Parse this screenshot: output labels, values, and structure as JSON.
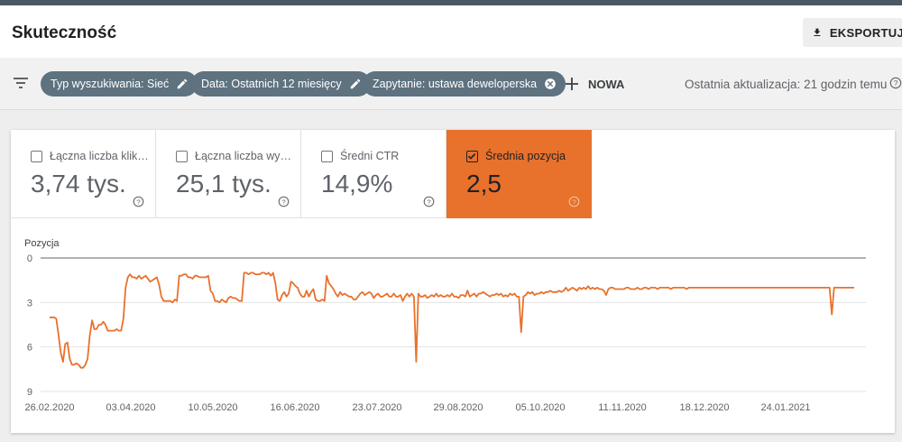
{
  "header": {
    "title": "Skuteczność",
    "export_label": "EKSPORTUJ"
  },
  "filters": {
    "chips": [
      {
        "label": "Typ wyszukiwania: Sieć",
        "icon": "edit-icon"
      },
      {
        "label": "Data: Ostatnich 12 miesięcy",
        "icon": "edit-icon"
      },
      {
        "label": "Zapytanie: ustawa deweloperska",
        "icon": "close-circle-icon"
      }
    ],
    "new_label": "NOWA",
    "last_update": "Ostatnia aktualizacja: 21 godzin temu"
  },
  "metrics": [
    {
      "label": "Łączna liczba klik…",
      "value": "3,74 tys.",
      "checked": false
    },
    {
      "label": "Łączna liczba wy…",
      "value": "25,1 tys.",
      "checked": false
    },
    {
      "label": "Średni CTR",
      "value": "14,9%",
      "checked": false
    },
    {
      "label": "Średnia pozycja",
      "value": "2,5",
      "checked": true
    }
  ],
  "colors": {
    "accent_orange": "#e8712c",
    "chip_bg": "#5e7280",
    "line": "#e8712c"
  },
  "chart_data": {
    "type": "line",
    "ylabel": "Pozycja",
    "y_reversed": true,
    "ylim": [
      0,
      9
    ],
    "yticks": [
      "0",
      "3",
      "6",
      "9"
    ],
    "xtick_labels": [
      "26.02.2020",
      "03.04.2020",
      "10.05.2020",
      "16.06.2020",
      "23.07.2020",
      "29.08.2020",
      "05.10.2020",
      "11.11.2020",
      "18.12.2020",
      "24.01.2021"
    ],
    "grid": true,
    "series": [
      {
        "color": "#e8712c",
        "x_start": "2020-02-26",
        "x_step_days": 1,
        "values": [
          4.0,
          4.0,
          4.0,
          4.1,
          5.2,
          6.4,
          7.0,
          5.8,
          5.7,
          6.8,
          7.2,
          7.2,
          7.1,
          7.2,
          7.4,
          7.4,
          7.2,
          6.8,
          5.2,
          4.2,
          4.8,
          4.8,
          4.5,
          4.5,
          4.3,
          4.5,
          4.9,
          4.9,
          4.9,
          4.9,
          4.8,
          4.9,
          4.9,
          4.1,
          2.0,
          1.3,
          1.1,
          1.3,
          1.3,
          1.4,
          1.2,
          1.4,
          1.3,
          1.2,
          1.4,
          1.6,
          1.5,
          1.4,
          1.3,
          1.8,
          2.6,
          2.9,
          2.9,
          2.9,
          2.9,
          3.0,
          2.8,
          2.9,
          1.2,
          1.2,
          1.1,
          1.1,
          1.3,
          1.3,
          1.4,
          1.2,
          1.2,
          1.3,
          1.3,
          1.3,
          1.3,
          1.2,
          2.2,
          2.4,
          2.9,
          2.9,
          3.0,
          2.8,
          2.9,
          3.0,
          2.7,
          2.6,
          2.7,
          2.7,
          2.8,
          2.9,
          2.9,
          1.0,
          1.0,
          1.1,
          1.0,
          1.0,
          1.1,
          1.1,
          1.1,
          1.0,
          1.0,
          1.1,
          1.0,
          1.2,
          1.0,
          1.7,
          2.8,
          2.9,
          2.5,
          2.3,
          2.6,
          2.4,
          1.6,
          1.7,
          1.9,
          2.0,
          2.4,
          2.6,
          2.6,
          2.2,
          2.6,
          2.3,
          2.1,
          2.8,
          2.9,
          2.9,
          2.8,
          2.9,
          1.2,
          1.7,
          1.9,
          2.1,
          2.4,
          2.6,
          2.3,
          2.5,
          2.4,
          2.5,
          2.6,
          2.6,
          2.8,
          2.8,
          2.6,
          2.4,
          2.3,
          2.5,
          2.4,
          2.3,
          2.4,
          2.7,
          2.5,
          2.4,
          2.6,
          2.6,
          2.5,
          2.4,
          2.6,
          2.6,
          2.4,
          2.6,
          2.6,
          2.5,
          2.9,
          2.6,
          2.4,
          2.6,
          2.4,
          2.6,
          7.0,
          2.4,
          2.6,
          2.6,
          2.5,
          2.7,
          2.6,
          2.5,
          2.6,
          2.4,
          2.6,
          2.5,
          2.6,
          2.6,
          2.5,
          2.6,
          2.4,
          2.6,
          2.6,
          2.7,
          2.5,
          2.5,
          2.6,
          2.2,
          2.6,
          2.5,
          2.4,
          2.6,
          2.4,
          2.4,
          2.3,
          2.4,
          2.5,
          2.6,
          2.5,
          2.5,
          2.4,
          2.5,
          2.4,
          2.6,
          2.5,
          2.6,
          2.4,
          2.5,
          2.4,
          2.6,
          2.6,
          5.0,
          2.6,
          2.5,
          2.3,
          2.4,
          2.3,
          2.5,
          2.4,
          2.4,
          2.3,
          2.4,
          2.3,
          2.3,
          2.2,
          2.3,
          2.3,
          2.3,
          2.2,
          2.3,
          2.2,
          2.0,
          2.2,
          2.1,
          2.0,
          2.1,
          2.2,
          2.0,
          2.1,
          2.0,
          2.1,
          1.9,
          2.1,
          2.0,
          2.1,
          2.0,
          2.1,
          2.1,
          2.2,
          2.5,
          2.1,
          2.0,
          2.0,
          2.1,
          2.1,
          2.1,
          2.1,
          2.1,
          2.0,
          2.0,
          2.1,
          2.1,
          2.1,
          2.0,
          2.1,
          2.1,
          2.0,
          2.0,
          2.1,
          2.0,
          2.0,
          2.0,
          2.1,
          2.0,
          2.0,
          2.0,
          2.0,
          2.0,
          2.1,
          2.0,
          2.0,
          2.0,
          2.0,
          2.0,
          2.0,
          2.1,
          2.0,
          2.0,
          2.0,
          2.0,
          2.0,
          2.0,
          2.0,
          2.0,
          2.0,
          2.0,
          2.0,
          2.0,
          2.0,
          2.0,
          2.0,
          2.0,
          2.0,
          2.0,
          2.0,
          2.0,
          2.0,
          2.0,
          2.0,
          2.0,
          2.0,
          2.0,
          2.0,
          2.0,
          2.0,
          2.0,
          2.0,
          2.0,
          2.0,
          2.0,
          2.0,
          2.0,
          2.0,
          2.0,
          2.0,
          2.0,
          2.0,
          2.0,
          2.0,
          2.0,
          2.0,
          2.0,
          2.0,
          2.0,
          2.0,
          2.0,
          2.0,
          2.0,
          2.0,
          2.0,
          2.0,
          2.0,
          2.0,
          2.0,
          2.0,
          2.0,
          2.0,
          2.0,
          2.0,
          2.0,
          3.8,
          2.0,
          2.0,
          2.0,
          2.0,
          2.0,
          2.0,
          2.0,
          2.0,
          2.0,
          2.0
        ]
      }
    ]
  }
}
